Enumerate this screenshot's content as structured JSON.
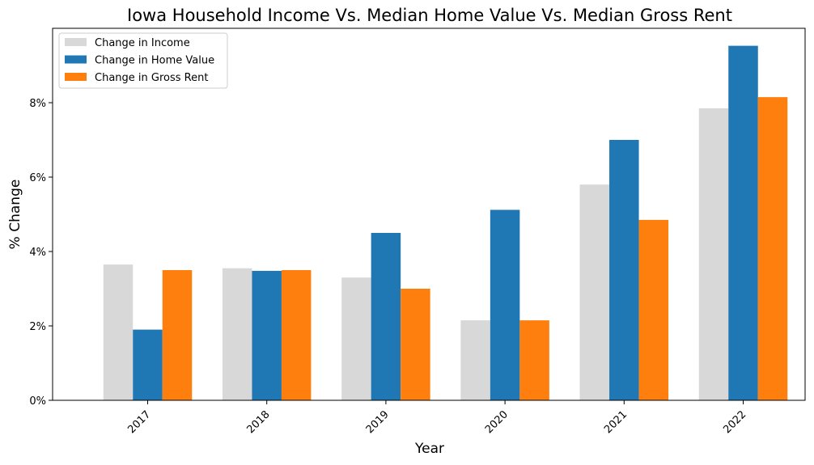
{
  "chart_data": {
    "type": "bar",
    "title": "Iowa Household Income Vs. Median Home Value Vs. Median Gross Rent",
    "xlabel": "Year",
    "ylabel": "% Change",
    "categories": [
      "2017",
      "2018",
      "2019",
      "2020",
      "2021",
      "2022"
    ],
    "ylim": [
      0,
      0.1
    ],
    "yticks": [
      0,
      0.02,
      0.04,
      0.06,
      0.08
    ],
    "ytick_labels": [
      "0%",
      "2%",
      "4%",
      "6%",
      "8%"
    ],
    "grid": false,
    "legend_position": "top-left",
    "series": [
      {
        "name": "Change in Income",
        "color": "#d8d8d8",
        "values": [
          0.0365,
          0.0355,
          0.033,
          0.0215,
          0.058,
          0.0785
        ]
      },
      {
        "name": "Change in Home Value",
        "color": "#1f77b4",
        "values": [
          0.019,
          0.0348,
          0.045,
          0.0512,
          0.07,
          0.0953
        ]
      },
      {
        "name": "Change in Gross Rent",
        "color": "#ff7f0e",
        "values": [
          0.035,
          0.035,
          0.03,
          0.0215,
          0.0485,
          0.0815
        ]
      }
    ]
  }
}
